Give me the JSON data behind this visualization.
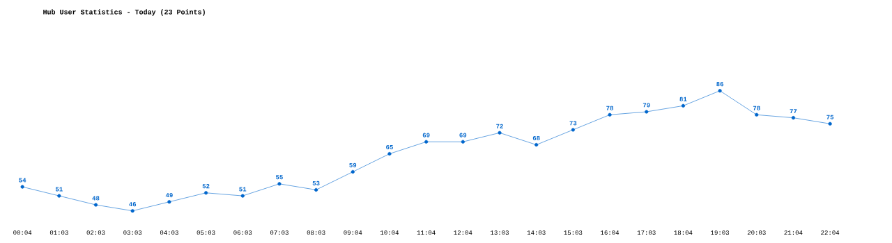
{
  "chart_data": {
    "type": "line",
    "title": "Hub User Statistics - Today (23 Points)",
    "categories": [
      "00:04",
      "01:03",
      "02:03",
      "03:03",
      "04:03",
      "05:03",
      "06:03",
      "07:03",
      "08:03",
      "09:04",
      "10:04",
      "11:04",
      "12:04",
      "13:03",
      "14:03",
      "15:03",
      "16:04",
      "17:03",
      "18:04",
      "19:03",
      "20:03",
      "21:04",
      "22:04"
    ],
    "values": [
      54,
      51,
      48,
      46,
      49,
      52,
      51,
      55,
      53,
      59,
      65,
      69,
      69,
      72,
      68,
      73,
      78,
      79,
      81,
      86,
      78,
      77,
      75
    ],
    "color": "#0066cc",
    "marker": "circle",
    "data_labels": true
  }
}
